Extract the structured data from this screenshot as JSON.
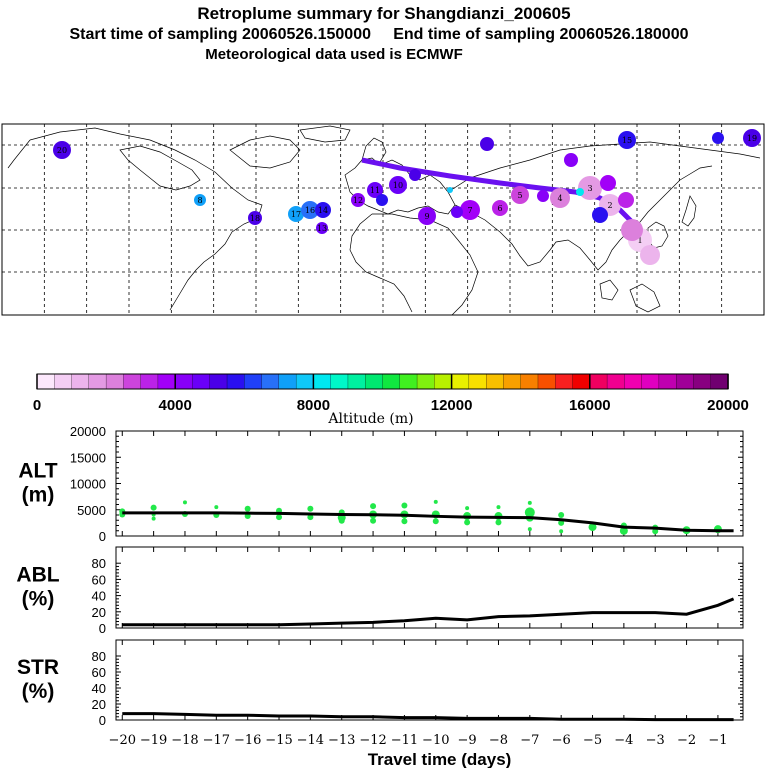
{
  "header": {
    "title": "Retroplume summary for Shangdianzi_200605",
    "sampling_start_label": "Start time of sampling 20060526.150000",
    "sampling_end_label": "End time of sampling 20060526.180000",
    "met_data_label": "Meteorological data used is ECMWF"
  },
  "colorbar": {
    "label": "Altitude (m)",
    "tick_labels": [
      "0",
      "4000",
      "8000",
      "12000",
      "16000",
      "20000"
    ],
    "min": 0,
    "max": 20000,
    "colors": [
      "#fce8fc",
      "#f4cef4",
      "#ecb4ec",
      "#e49ae4",
      "#dc80dc",
      "#cc44dc",
      "#bb22e8",
      "#a200f8",
      "#8800f8",
      "#6a00f8",
      "#4a00e8",
      "#2a10f0",
      "#2040f8",
      "#2870f8",
      "#10a0f8",
      "#10c8f8",
      "#00e8f0",
      "#00f8c8",
      "#00f0a0",
      "#00e870",
      "#10e840",
      "#40f020",
      "#80f010",
      "#b8f000",
      "#e8f000",
      "#f8e000",
      "#f8c000",
      "#f8a000",
      "#f88000",
      "#f85000",
      "#f82020",
      "#f00000",
      "#f00060",
      "#f00090",
      "#f000b0",
      "#e000c0",
      "#c000b0",
      "#a00098",
      "#880080",
      "#700070"
    ]
  },
  "map": {
    "markers": [
      {
        "label": "20",
        "color": "#4a00e8"
      },
      {
        "label": "15",
        "color": "#2a10f0"
      },
      {
        "label": "19",
        "color": "#4a00e8"
      },
      {
        "label": "8",
        "color": "#10a0f8"
      },
      {
        "label": "18",
        "color": "#4a00e8"
      },
      {
        "label": "17",
        "color": "#10a0f8"
      },
      {
        "label": "16",
        "color": "#2870f8"
      },
      {
        "label": "14",
        "color": "#2a10f0"
      },
      {
        "label": "13",
        "color": "#6a00f8"
      },
      {
        "label": "12",
        "color": "#8800f8"
      },
      {
        "label": "11",
        "color": "#6a00f8"
      },
      {
        "label": "10",
        "color": "#6a00f8"
      },
      {
        "label": "9",
        "color": "#8800f8"
      },
      {
        "label": "7",
        "color": "#a200f8"
      },
      {
        "label": "6",
        "color": "#bb22e8"
      },
      {
        "label": "5",
        "color": "#cc44dc"
      },
      {
        "label": "4",
        "color": "#dc80dc"
      },
      {
        "label": "3",
        "color": "#e49ae4"
      },
      {
        "label": "2",
        "color": "#ecb4ec"
      },
      {
        "label": "1",
        "color": "#f4cef4"
      }
    ]
  },
  "chart_data": [
    {
      "type": "line",
      "panel": "ALT",
      "ylabel": "ALT\n(m)",
      "ylabel_line1": "ALT",
      "ylabel_line2": "(m)",
      "ylim": [
        0,
        20000
      ],
      "yticks": [
        0,
        5000,
        10000,
        15000,
        20000
      ],
      "ytick_labels": [
        "0",
        "5000",
        "10000",
        "15000",
        "20000"
      ],
      "x": [
        -20,
        -19,
        -18,
        -17,
        -16,
        -15,
        -14,
        -13,
        -12,
        -11,
        -10,
        -9,
        -8,
        -7,
        -6,
        -5,
        -4,
        -3,
        -2,
        -1,
        -0.5
      ],
      "series": [
        {
          "name": "mean altitude",
          "values": [
            4400,
            4400,
            4400,
            4400,
            4350,
            4300,
            4200,
            4100,
            4050,
            3950,
            3750,
            3600,
            3550,
            3500,
            3100,
            2500,
            1700,
            1500,
            1100,
            1000,
            1000
          ]
        }
      ],
      "scatter": {
        "name": "altitude spread",
        "color": "#22e84a",
        "x": [
          -20,
          -20,
          -19,
          -19,
          -19,
          -18,
          -18,
          -17,
          -17,
          -16,
          -16,
          -15,
          -15,
          -14,
          -14,
          -13,
          -13,
          -13,
          -12,
          -12,
          -12,
          -11,
          -11,
          -11,
          -10,
          -10,
          -10,
          -9,
          -9,
          -9,
          -8,
          -8,
          -8,
          -7,
          -7,
          -7,
          -7,
          -6,
          -6,
          -6,
          -5,
          -4,
          -4,
          -3,
          -3,
          -2,
          -1
        ],
        "y": [
          4700,
          4100,
          5400,
          4100,
          3300,
          6400,
          4200,
          5500,
          4000,
          5200,
          3800,
          4800,
          3600,
          5200,
          3600,
          4500,
          3500,
          2900,
          5700,
          4100,
          2900,
          5800,
          4100,
          2800,
          6500,
          4100,
          2800,
          5300,
          3800,
          2600,
          5500,
          3800,
          2600,
          6300,
          4500,
          3500,
          1300,
          4000,
          2500,
          900,
          1700,
          2000,
          1000,
          1600,
          900,
          1100,
          1300
        ],
        "sizes": [
          3,
          3,
          3,
          2,
          2,
          2,
          3,
          2,
          3,
          3,
          3,
          3,
          3,
          3,
          3,
          3,
          4,
          3,
          3,
          4,
          3,
          3,
          4,
          3,
          2,
          4,
          3,
          2,
          4,
          3,
          2,
          4,
          3,
          2,
          5,
          4,
          2,
          3,
          3,
          2,
          4,
          3,
          4,
          3,
          3,
          4,
          4
        ]
      }
    },
    {
      "type": "line",
      "panel": "ABL",
      "ylabel_line1": "ABL",
      "ylabel_line2": "(%)",
      "ylim": [
        0,
        100
      ],
      "yticks": [
        0,
        20,
        40,
        60,
        80
      ],
      "ytick_labels": [
        "0",
        "20",
        "40",
        "60",
        "80"
      ],
      "x": [
        -20,
        -19,
        -18,
        -17,
        -16,
        -15,
        -14,
        -13,
        -12,
        -11,
        -10,
        -9,
        -8,
        -7,
        -6,
        -5,
        -4,
        -3,
        -2,
        -1,
        -0.5
      ],
      "series": [
        {
          "name": "ABL fraction",
          "values": [
            4,
            4,
            4,
            4,
            4,
            4,
            5,
            6,
            7,
            9,
            12,
            10,
            14,
            15,
            17,
            19,
            19,
            19,
            17,
            28,
            36
          ]
        }
      ]
    },
    {
      "type": "line",
      "panel": "STR",
      "ylabel_line1": "STR",
      "ylabel_line2": "(%)",
      "ylim": [
        0,
        100
      ],
      "yticks": [
        0,
        20,
        40,
        60,
        80
      ],
      "ytick_labels": [
        "0",
        "20",
        "40",
        "60",
        "80"
      ],
      "xlabel": "Travel time (days)",
      "xticks": [
        -20,
        -19,
        -18,
        -17,
        -16,
        -15,
        -14,
        -13,
        -12,
        -11,
        -10,
        -9,
        -8,
        -7,
        -6,
        -5,
        -4,
        -3,
        -2,
        -1
      ],
      "xtick_labels": [
        "−20",
        "−19",
        "−18",
        "−17",
        "−16",
        "−15",
        "−14",
        "−13",
        "−12",
        "−11",
        "−10",
        "−9",
        "−8",
        "−7",
        "−6",
        "−5",
        "−4",
        "−3",
        "−2",
        "−1"
      ],
      "x": [
        -20,
        -19,
        -18,
        -17,
        -16,
        -15,
        -14,
        -13,
        -12,
        -11,
        -10,
        -9,
        -8,
        -7,
        -6,
        -5,
        -4,
        -3,
        -2,
        -1,
        -0.5
      ],
      "series": [
        {
          "name": "stratosphere fraction",
          "values": [
            8,
            8,
            7,
            6,
            6,
            5,
            5,
            4,
            4,
            3,
            3,
            2,
            2,
            2,
            1,
            1,
            1,
            0.5,
            0.5,
            0.5,
            0.5
          ]
        }
      ]
    }
  ]
}
